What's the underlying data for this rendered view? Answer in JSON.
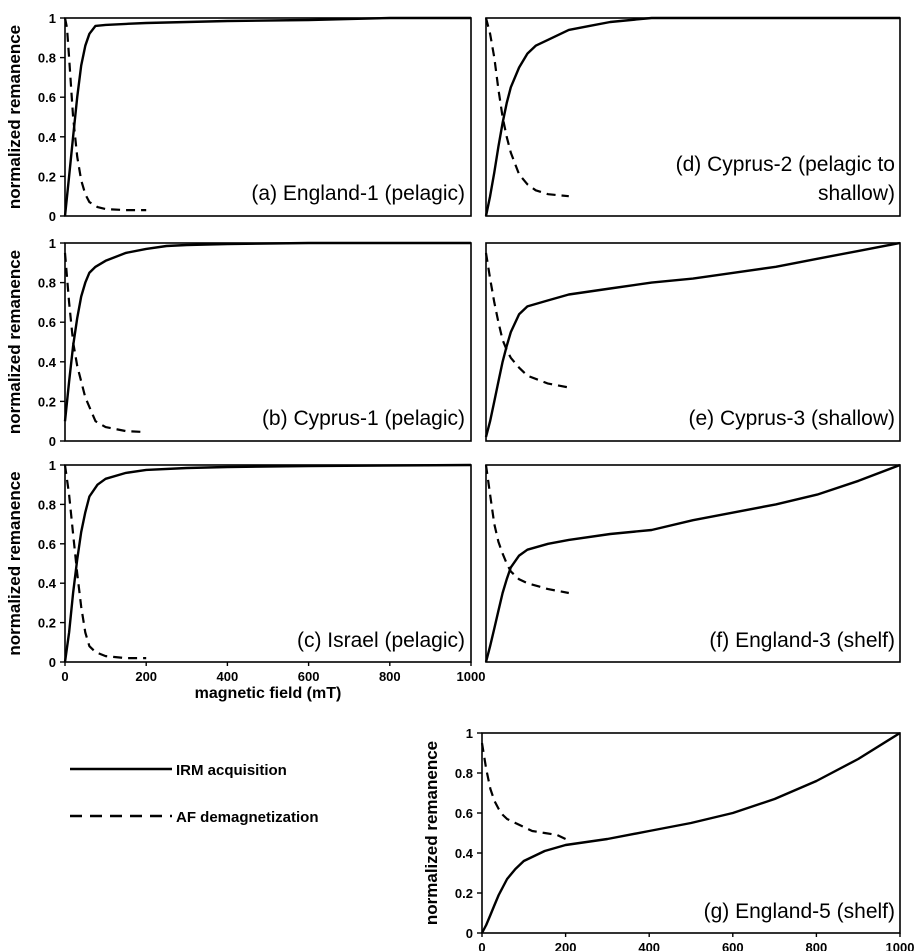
{
  "legend": {
    "items": [
      {
        "label": "IRM acquisition",
        "style": "solid"
      },
      {
        "label": "AF demagnetization",
        "style": "dashed"
      }
    ]
  },
  "chart_data": [
    {
      "type": "line",
      "panel": "a",
      "label_lines": [
        "(a)  England-1 (pelagic)"
      ],
      "ylabel": "normalized remanence",
      "xlabel": "",
      "xlim": [
        0,
        1000
      ],
      "ylim": [
        0,
        1
      ],
      "x_ticks": [],
      "y_ticks": [
        "0",
        "0.2",
        "0.4",
        "0.6",
        "0.8",
        "1"
      ],
      "series": [
        {
          "name": "IRM acquisition",
          "x": [
            0,
            10,
            20,
            30,
            40,
            50,
            60,
            75,
            100,
            150,
            200,
            300,
            400,
            600,
            800,
            1000
          ],
          "y": [
            0,
            0.2,
            0.4,
            0.6,
            0.76,
            0.86,
            0.92,
            0.96,
            0.965,
            0.97,
            0.975,
            0.98,
            0.985,
            0.99,
            1.0,
            1.0
          ]
        },
        {
          "name": "AF demagnetization",
          "x": [
            0,
            5,
            10,
            20,
            30,
            40,
            50,
            60,
            80,
            100,
            150,
            200
          ],
          "y": [
            1.0,
            0.95,
            0.8,
            0.5,
            0.3,
            0.18,
            0.11,
            0.07,
            0.045,
            0.035,
            0.03,
            0.03
          ]
        }
      ]
    },
    {
      "type": "line",
      "panel": "b",
      "label_lines": [
        "(b)  Cyprus-1 (pelagic)"
      ],
      "ylabel": "normalized remanence",
      "xlabel": "",
      "xlim": [
        0,
        1000
      ],
      "ylim": [
        0,
        1
      ],
      "x_ticks": [],
      "y_ticks": [
        "0",
        "0.2",
        "0.4",
        "0.6",
        "0.8",
        "1"
      ],
      "series": [
        {
          "name": "IRM acquisition",
          "x": [
            0,
            10,
            20,
            30,
            40,
            50,
            60,
            75,
            100,
            150,
            200,
            250,
            300,
            400,
            600,
            1000
          ],
          "y": [
            0.1,
            0.3,
            0.48,
            0.62,
            0.73,
            0.8,
            0.85,
            0.88,
            0.91,
            0.95,
            0.97,
            0.985,
            0.99,
            0.995,
            1.0,
            1.0
          ]
        },
        {
          "name": "AF demagnetization",
          "x": [
            0,
            10,
            20,
            30,
            50,
            75,
            100,
            150,
            200
          ],
          "y": [
            0.95,
            0.7,
            0.5,
            0.38,
            0.22,
            0.1,
            0.07,
            0.05,
            0.045
          ]
        }
      ]
    },
    {
      "type": "line",
      "panel": "c",
      "label_lines": [
        "(c)  Israel (pelagic)"
      ],
      "ylabel": "normalized remanence",
      "xlabel": "magnetic field (mT)",
      "xlim": [
        0,
        1000
      ],
      "ylim": [
        0,
        1
      ],
      "x_ticks": [
        "0",
        "200",
        "400",
        "600",
        "800",
        "1000"
      ],
      "y_ticks": [
        "0",
        "0.2",
        "0.4",
        "0.6",
        "0.8",
        "1"
      ],
      "series": [
        {
          "name": "IRM acquisition",
          "x": [
            0,
            10,
            20,
            30,
            40,
            50,
            60,
            80,
            100,
            150,
            200,
            300,
            400,
            600,
            1000
          ],
          "y": [
            0,
            0.15,
            0.35,
            0.52,
            0.66,
            0.76,
            0.84,
            0.9,
            0.93,
            0.96,
            0.975,
            0.985,
            0.99,
            0.995,
            1.0
          ]
        },
        {
          "name": "AF demagnetization",
          "x": [
            0,
            10,
            20,
            30,
            40,
            50,
            60,
            75,
            100,
            150,
            200
          ],
          "y": [
            1.0,
            0.85,
            0.65,
            0.45,
            0.28,
            0.15,
            0.08,
            0.05,
            0.03,
            0.02,
            0.02
          ]
        }
      ]
    },
    {
      "type": "line",
      "panel": "d",
      "label_lines": [
        "(d) Cyprus-2 (pelagic to",
        "shallow)"
      ],
      "ylabel": "",
      "xlabel": "",
      "xlim": [
        0,
        1000
      ],
      "ylim": [
        0,
        1
      ],
      "x_ticks": [],
      "y_ticks": [],
      "series": [
        {
          "name": "IRM acquisition",
          "x": [
            0,
            10,
            20,
            30,
            40,
            50,
            60,
            80,
            100,
            120,
            150,
            200,
            250,
            300,
            400,
            500,
            600,
            800,
            1000
          ],
          "y": [
            0,
            0.1,
            0.22,
            0.35,
            0.47,
            0.57,
            0.65,
            0.75,
            0.82,
            0.86,
            0.89,
            0.94,
            0.96,
            0.98,
            1.0,
            1.0,
            1.0,
            1.0,
            1.0
          ]
        },
        {
          "name": "AF demagnetization",
          "x": [
            0,
            10,
            20,
            30,
            40,
            50,
            60,
            80,
            100,
            120,
            150,
            200
          ],
          "y": [
            1.0,
            0.92,
            0.8,
            0.64,
            0.5,
            0.4,
            0.32,
            0.21,
            0.16,
            0.13,
            0.11,
            0.1
          ]
        }
      ]
    },
    {
      "type": "line",
      "panel": "e",
      "label_lines": [
        "(e) Cyprus-3 (shallow)"
      ],
      "ylabel": "",
      "xlabel": "",
      "xlim": [
        0,
        1000
      ],
      "ylim": [
        0,
        1
      ],
      "x_ticks": [],
      "y_ticks": [],
      "series": [
        {
          "name": "IRM acquisition",
          "x": [
            0,
            10,
            20,
            30,
            40,
            50,
            60,
            80,
            100,
            150,
            200,
            300,
            400,
            500,
            600,
            700,
            800,
            900,
            1000
          ],
          "y": [
            0.02,
            0.1,
            0.2,
            0.3,
            0.4,
            0.48,
            0.55,
            0.64,
            0.68,
            0.71,
            0.74,
            0.77,
            0.8,
            0.82,
            0.85,
            0.88,
            0.92,
            0.96,
            1.0
          ]
        },
        {
          "name": "AF demagnetization",
          "x": [
            0,
            10,
            20,
            30,
            40,
            50,
            60,
            80,
            100,
            150,
            200
          ],
          "y": [
            0.95,
            0.82,
            0.7,
            0.6,
            0.51,
            0.46,
            0.42,
            0.37,
            0.33,
            0.29,
            0.27
          ]
        }
      ]
    },
    {
      "type": "line",
      "panel": "f",
      "label_lines": [
        "(f) England-3 (shelf)"
      ],
      "ylabel": "",
      "xlabel": "",
      "xlim": [
        0,
        1000
      ],
      "ylim": [
        0,
        1
      ],
      "x_ticks": [],
      "y_ticks": [],
      "series": [
        {
          "name": "IRM acquisition",
          "x": [
            0,
            10,
            20,
            30,
            40,
            50,
            60,
            80,
            100,
            150,
            200,
            300,
            400,
            500,
            600,
            700,
            800,
            900,
            1000
          ],
          "y": [
            0,
            0.08,
            0.17,
            0.26,
            0.35,
            0.42,
            0.48,
            0.54,
            0.57,
            0.6,
            0.62,
            0.65,
            0.67,
            0.72,
            0.76,
            0.8,
            0.85,
            0.92,
            1.0
          ]
        },
        {
          "name": "AF demagnetization",
          "x": [
            0,
            10,
            20,
            30,
            40,
            50,
            60,
            80,
            100,
            150,
            200
          ],
          "y": [
            1.0,
            0.85,
            0.7,
            0.61,
            0.55,
            0.5,
            0.46,
            0.42,
            0.4,
            0.37,
            0.35
          ]
        }
      ]
    },
    {
      "type": "line",
      "panel": "g",
      "label_lines": [
        "(g) England-5 (shelf)"
      ],
      "ylabel": "normalized remanence",
      "xlabel": "magnetic field (mT)",
      "xlim": [
        0,
        1000
      ],
      "ylim": [
        0,
        1
      ],
      "x_ticks": [
        "0",
        "200",
        "400",
        "600",
        "800",
        "1000"
      ],
      "y_ticks": [
        "0",
        "0.2",
        "0.4",
        "0.6",
        "0.8",
        "1"
      ],
      "series": [
        {
          "name": "IRM acquisition",
          "x": [
            0,
            10,
            20,
            30,
            40,
            50,
            60,
            80,
            100,
            150,
            200,
            300,
            400,
            500,
            600,
            700,
            800,
            900,
            1000
          ],
          "y": [
            0,
            0.04,
            0.09,
            0.14,
            0.19,
            0.23,
            0.27,
            0.32,
            0.36,
            0.41,
            0.44,
            0.47,
            0.51,
            0.55,
            0.6,
            0.67,
            0.76,
            0.87,
            1.0
          ]
        },
        {
          "name": "AF demagnetization",
          "x": [
            0,
            10,
            20,
            30,
            40,
            50,
            60,
            80,
            100,
            120,
            150,
            180,
            200
          ],
          "y": [
            0.95,
            0.82,
            0.72,
            0.66,
            0.62,
            0.59,
            0.57,
            0.55,
            0.53,
            0.51,
            0.5,
            0.49,
            0.47
          ]
        }
      ]
    }
  ]
}
